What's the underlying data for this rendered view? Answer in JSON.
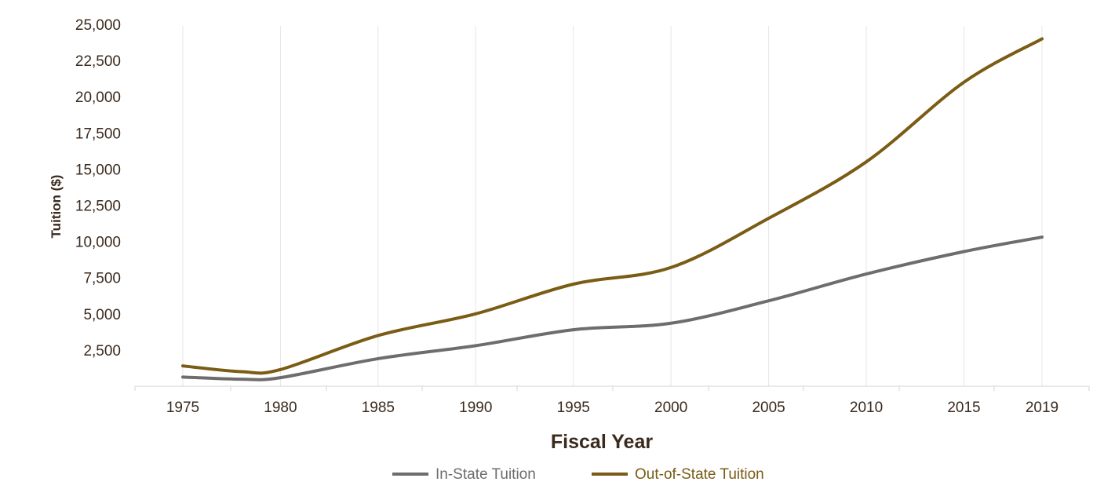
{
  "chart_data": {
    "type": "line",
    "xlabel": "Fiscal Year",
    "ylabel": "Tuition ($)",
    "x": [
      1975,
      1980,
      1985,
      1990,
      1995,
      2000,
      2005,
      2010,
      2015,
      2019
    ],
    "x_tick_labels": [
      "1975",
      "1980",
      "1985",
      "1990",
      "1995",
      "2000",
      "2005",
      "2010",
      "2015",
      "2019"
    ],
    "ylim": [
      0,
      25000
    ],
    "y_ticks": [
      2500,
      5000,
      7500,
      10000,
      12500,
      15000,
      17500,
      20000,
      22500,
      25000
    ],
    "y_tick_labels": [
      "2,500",
      "5,000",
      "7,500",
      "10,000",
      "12,500",
      "15,000",
      "17,500",
      "20,000",
      "22,500",
      "25,000"
    ],
    "grid": "vertical",
    "legend_position": "bottom-center",
    "series": [
      {
        "name": "In-State Tuition",
        "color": "#6d6d6d",
        "points": [
          [
            1975,
            630
          ],
          [
            1978,
            480
          ],
          [
            1980,
            590
          ],
          [
            1985,
            1900
          ],
          [
            1990,
            2800
          ],
          [
            1995,
            3900
          ],
          [
            2000,
            4350
          ],
          [
            2005,
            5900
          ],
          [
            2010,
            7750
          ],
          [
            2015,
            9300
          ],
          [
            2019,
            10300
          ]
        ]
      },
      {
        "name": "Out-of-State Tuition",
        "color": "#7a5c14",
        "points": [
          [
            1975,
            1400
          ],
          [
            1978,
            1000
          ],
          [
            1980,
            1150
          ],
          [
            1985,
            3500
          ],
          [
            1990,
            5000
          ],
          [
            1995,
            7050
          ],
          [
            2000,
            8200
          ],
          [
            2005,
            11600
          ],
          [
            2010,
            15500
          ],
          [
            2015,
            21000
          ],
          [
            2019,
            24000
          ]
        ]
      }
    ]
  }
}
